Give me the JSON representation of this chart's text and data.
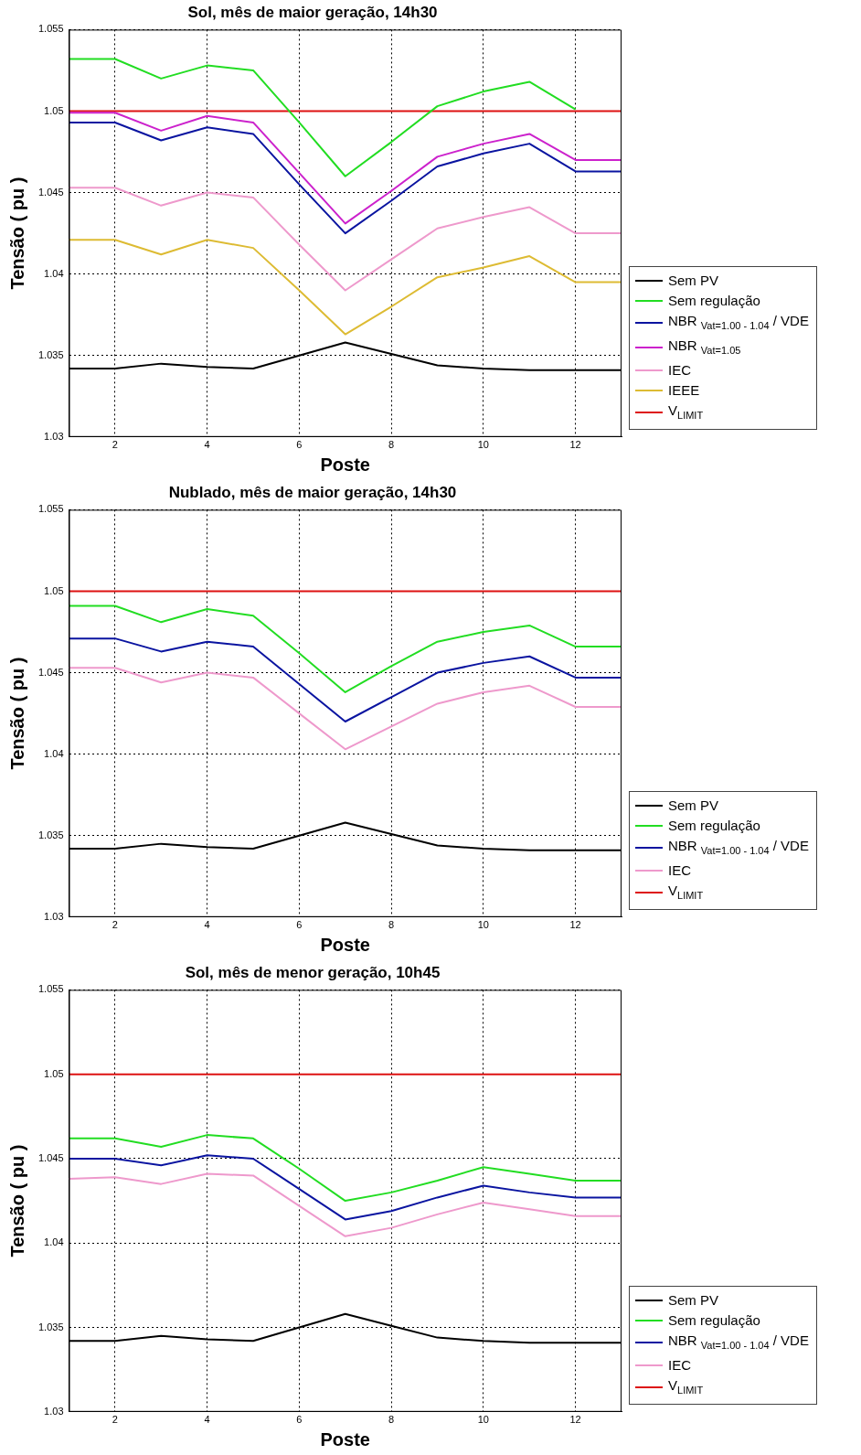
{
  "chart_data": [
    {
      "type": "line",
      "title": "Sol, mês de maior geração, 14h30",
      "xlabel": "Poste",
      "ylabel": "Tensão ( pu )",
      "x": [
        1,
        2,
        3,
        4,
        5,
        6,
        7,
        8,
        9,
        10,
        11,
        12,
        13
      ],
      "xlim": [
        1,
        13
      ],
      "xticks": [
        2,
        4,
        6,
        8,
        10,
        12
      ],
      "ylim": [
        1.03,
        1.055
      ],
      "yticks": [
        1.03,
        1.035,
        1.04,
        1.045,
        1.05,
        1.055
      ],
      "grid": true,
      "legend": "right",
      "marker": "none",
      "series": [
        {
          "name": "Sem PV",
          "color": "#000000",
          "values": [
            1.0342,
            1.0342,
            1.0345,
            1.0343,
            1.0342,
            1.035,
            1.0358,
            1.0351,
            1.0344,
            1.0342,
            1.0341,
            1.0341,
            1.0341
          ]
        },
        {
          "name": "Sem regulação",
          "color": "#22dd22",
          "values": [
            1.0532,
            1.0532,
            1.052,
            1.0528,
            1.0525,
            1.0493,
            1.046,
            1.0481,
            1.0503,
            1.0512,
            1.0518,
            1.0501,
            null
          ]
        },
        {
          "name": "NBR $_{Vat=1.00 - 1.04}$ / VDE",
          "color": "#0a14a0",
          "values": [
            1.0493,
            1.0493,
            1.0482,
            1.049,
            1.0486,
            1.0455,
            1.0425,
            1.0445,
            1.0466,
            1.0474,
            1.048,
            1.0463,
            1.0463
          ]
        },
        {
          "name": "NBR $_{Vat=1.05}$",
          "color": "#cc22cc",
          "values": [
            1.0499,
            1.0499,
            1.0488,
            1.0497,
            1.0493,
            1.0462,
            1.0431,
            1.0451,
            1.0472,
            1.048,
            1.0486,
            1.047,
            1.047
          ]
        },
        {
          "name": "IEC",
          "color": "#ee99cc",
          "values": [
            1.0453,
            1.0453,
            1.0442,
            1.045,
            1.0447,
            1.0418,
            1.039,
            1.0409,
            1.0428,
            1.0435,
            1.0441,
            1.0425,
            1.0425
          ]
        },
        {
          "name": "IEEE",
          "color": "#ddbb33",
          "values": [
            1.0421,
            1.0421,
            1.0412,
            1.0421,
            1.0416,
            1.039,
            1.0363,
            1.038,
            1.0398,
            1.0404,
            1.0411,
            1.0395,
            1.0395
          ]
        },
        {
          "name": "V$_{LIMIT}$",
          "color": "#dd1111",
          "values": [
            1.05,
            1.05,
            1.05,
            1.05,
            1.05,
            1.05,
            1.05,
            1.05,
            1.05,
            1.05,
            1.05,
            1.05,
            1.05
          ]
        }
      ]
    },
    {
      "type": "line",
      "title": "Nublado, mês de maior geração, 14h30",
      "xlabel": "Poste",
      "ylabel": "Tensão ( pu )",
      "x": [
        1,
        2,
        3,
        4,
        5,
        6,
        7,
        8,
        9,
        10,
        11,
        12,
        13
      ],
      "xlim": [
        1,
        13
      ],
      "xticks": [
        2,
        4,
        6,
        8,
        10,
        12
      ],
      "ylim": [
        1.03,
        1.055
      ],
      "yticks": [
        1.03,
        1.035,
        1.04,
        1.045,
        1.05,
        1.055
      ],
      "grid": true,
      "legend": "right",
      "marker": "none",
      "series": [
        {
          "name": "Sem PV",
          "color": "#000000",
          "values": [
            1.0342,
            1.0342,
            1.0345,
            1.0343,
            1.0342,
            1.035,
            1.0358,
            1.0351,
            1.0344,
            1.0342,
            1.0341,
            1.0341,
            1.0341
          ]
        },
        {
          "name": "Sem regulação",
          "color": "#22dd22",
          "values": [
            1.0491,
            1.0491,
            1.0481,
            1.0489,
            1.0485,
            1.0462,
            1.0438,
            1.0454,
            1.0469,
            1.0475,
            1.0479,
            1.0466,
            1.0466
          ]
        },
        {
          "name": "NBR $_{Vat=1.00 - 1.04}$ / VDE",
          "color": "#0a14a0",
          "values": [
            1.0471,
            1.0471,
            1.0463,
            1.0469,
            1.0466,
            1.0443,
            1.042,
            1.0435,
            1.045,
            1.0456,
            1.046,
            1.0447,
            1.0447
          ]
        },
        {
          "name": "IEC",
          "color": "#ee99cc",
          "values": [
            1.0453,
            1.0453,
            1.0444,
            1.045,
            1.0447,
            1.0425,
            1.0403,
            1.0417,
            1.0431,
            1.0438,
            1.0442,
            1.0429,
            1.0429
          ]
        },
        {
          "name": "V$_{LIMIT}$",
          "color": "#dd1111",
          "values": [
            1.05,
            1.05,
            1.05,
            1.05,
            1.05,
            1.05,
            1.05,
            1.05,
            1.05,
            1.05,
            1.05,
            1.05,
            1.05
          ]
        }
      ]
    },
    {
      "type": "line",
      "title": "Sol, mês de menor geração, 10h45",
      "xlabel": "Poste",
      "ylabel": "Tensão ( pu )",
      "x": [
        1,
        2,
        3,
        4,
        5,
        6,
        7,
        8,
        9,
        10,
        11,
        12,
        13
      ],
      "xlim": [
        1,
        13
      ],
      "xticks": [
        2,
        4,
        6,
        8,
        10,
        12
      ],
      "ylim": [
        1.03,
        1.055
      ],
      "yticks": [
        1.03,
        1.035,
        1.04,
        1.045,
        1.05,
        1.055
      ],
      "grid": true,
      "legend": "right",
      "marker": "none",
      "series": [
        {
          "name": "Sem PV",
          "color": "#000000",
          "values": [
            1.0342,
            1.0342,
            1.0345,
            1.0343,
            1.0342,
            1.035,
            1.0358,
            1.0351,
            1.0344,
            1.0342,
            1.0341,
            1.0341,
            1.0341
          ]
        },
        {
          "name": "Sem regulação",
          "color": "#22dd22",
          "values": [
            1.0462,
            1.0462,
            1.0457,
            1.0464,
            1.0462,
            1.0444,
            1.0425,
            1.043,
            1.0437,
            1.0445,
            1.0441,
            1.0437,
            1.0437
          ]
        },
        {
          "name": "NBR $_{Vat=1.00 - 1.04}$ / VDE",
          "color": "#0a14a0",
          "values": [
            1.045,
            1.045,
            1.0446,
            1.0452,
            1.045,
            1.0432,
            1.0414,
            1.0419,
            1.0427,
            1.0434,
            1.043,
            1.0427,
            1.0427
          ]
        },
        {
          "name": "IEC",
          "color": "#ee99cc",
          "values": [
            1.0438,
            1.0439,
            1.0435,
            1.0441,
            1.044,
            1.0422,
            1.0404,
            1.0409,
            1.0417,
            1.0424,
            1.042,
            1.0416,
            1.0416
          ]
        },
        {
          "name": "V$_{LIMIT}$",
          "color": "#dd1111",
          "values": [
            1.05,
            1.05,
            1.05,
            1.05,
            1.05,
            1.05,
            1.05,
            1.05,
            1.05,
            1.05,
            1.05,
            1.05,
            1.05
          ]
        }
      ]
    }
  ]
}
